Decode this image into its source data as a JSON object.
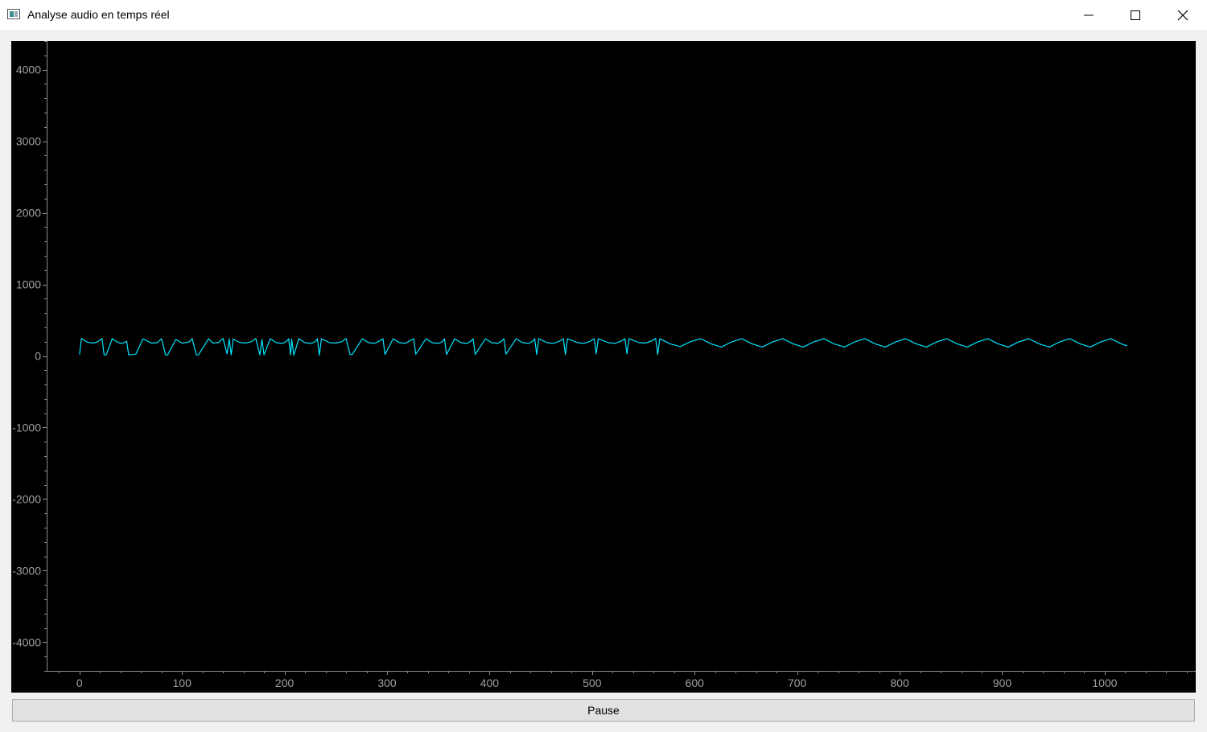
{
  "window": {
    "title": "Analyse audio en temps réel",
    "controls": [
      "minimize-icon",
      "maximize-icon",
      "close-icon"
    ]
  },
  "controls": {
    "pause_label": "Pause"
  },
  "colors": {
    "plot_background": "#000000",
    "trace": "#00e5ff",
    "axis": "#8c8c8c",
    "tick_label": "#a0a0a0"
  },
  "chart_data": {
    "type": "line",
    "title": "",
    "xlabel": "",
    "ylabel": "",
    "xlim": [
      -32,
      1088
    ],
    "ylim": [
      -4400,
      4400
    ],
    "xticks": [
      0,
      100,
      200,
      300,
      400,
      500,
      600,
      700,
      800,
      900,
      1000
    ],
    "yticks": [
      4000,
      3000,
      2000,
      1000,
      0,
      -1000,
      -2000,
      -3000,
      -4000
    ],
    "xtick_labels": [
      "0",
      "100",
      "200",
      "300",
      "400",
      "500",
      "600",
      "700",
      "800",
      "900",
      "1000"
    ],
    "ytick_labels": [
      "4000",
      "3000",
      "2000",
      "1000",
      "0",
      "-1000",
      "-2000",
      "-3000",
      "-4000"
    ],
    "grid": false,
    "series": [
      {
        "x": [
          0,
          2,
          8,
          14,
          18,
          22,
          24,
          26,
          32,
          38,
          42,
          46,
          48,
          55,
          62,
          70,
          76,
          80,
          84,
          86,
          94,
          100,
          107,
          110,
          114,
          116,
          126,
          130,
          136,
          140,
          144,
          146,
          148,
          150,
          156,
          162,
          168,
          172,
          176,
          178,
          180,
          186,
          192,
          198,
          202,
          204,
          206,
          207,
          209,
          214,
          220,
          226,
          230,
          232,
          234,
          236,
          244,
          250,
          256,
          260,
          264,
          266,
          276,
          282,
          288,
          292,
          296,
          298,
          306,
          312,
          318,
          322,
          326,
          328,
          338,
          344,
          350,
          354,
          356,
          358,
          366,
          372,
          378,
          382,
          384,
          386,
          396,
          402,
          408,
          412,
          414,
          416,
          426,
          432,
          438,
          442,
          444,
          446,
          448,
          456,
          462,
          468,
          472,
          474,
          476,
          486,
          492,
          498,
          502,
          504,
          506,
          516,
          522,
          528,
          532,
          534,
          536,
          546,
          552,
          558,
          562,
          564,
          566,
          576,
          586,
          596,
          606,
          616,
          626,
          636,
          646,
          656,
          666,
          676,
          686,
          696,
          706,
          716,
          726,
          736,
          746,
          756,
          766,
          776,
          786,
          796,
          806,
          816,
          826,
          836,
          846,
          856,
          866,
          876,
          886,
          896,
          906,
          916,
          926,
          936,
          946,
          956,
          966,
          976,
          986,
          996,
          1006,
          1016,
          1022
        ],
        "y": [
          20,
          245,
          190,
          180,
          200,
          245,
          15,
          15,
          240,
          185,
          175,
          205,
          15,
          25,
          240,
          180,
          185,
          240,
          15,
          15,
          230,
          180,
          195,
          240,
          15,
          15,
          240,
          180,
          190,
          245,
          30,
          240,
          15,
          235,
          190,
          180,
          200,
          245,
          15,
          230,
          15,
          240,
          185,
          175,
          205,
          240,
          15,
          235,
          10,
          240,
          185,
          175,
          200,
          240,
          10,
          240,
          185,
          180,
          200,
          245,
          20,
          20,
          240,
          185,
          175,
          205,
          240,
          20,
          240,
          185,
          175,
          210,
          240,
          25,
          240,
          185,
          175,
          200,
          240,
          20,
          240,
          185,
          175,
          210,
          240,
          20,
          240,
          185,
          175,
          210,
          240,
          25,
          240,
          185,
          175,
          205,
          240,
          20,
          240,
          185,
          175,
          205,
          240,
          20,
          240,
          185,
          175,
          205,
          240,
          30,
          240,
          185,
          175,
          205,
          240,
          30,
          240,
          185,
          180,
          210,
          245,
          20,
          240,
          170,
          130,
          200,
          240,
          170,
          125,
          195,
          240,
          170,
          125,
          195,
          240,
          170,
          125,
          195,
          240,
          170,
          125,
          195,
          240,
          170,
          125,
          195,
          240,
          170,
          125,
          195,
          240,
          170,
          125,
          195,
          240,
          170,
          125,
          195,
          240,
          170,
          125,
          195,
          240,
          170,
          125,
          195,
          240,
          170,
          140
        ]
      }
    ]
  }
}
